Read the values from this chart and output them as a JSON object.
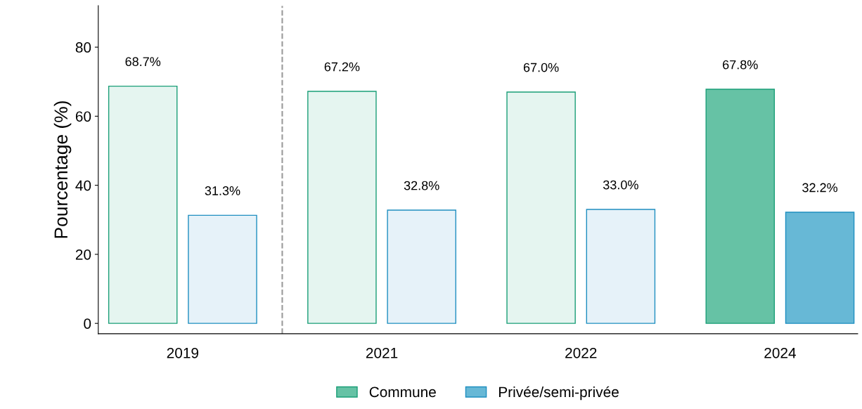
{
  "chart_data": {
    "type": "bar",
    "ylabel": "Pourcentage (%)",
    "categories": [
      "2019",
      "2021",
      "2022",
      "2024"
    ],
    "series": [
      {
        "name": "Commune",
        "color": "#1a9e77",
        "colors": [
          "#e5f5f0",
          "#e5f5f0",
          "#e5f5f0",
          "#66c2a5"
        ],
        "values": [
          68.7,
          67.2,
          67.0,
          67.8
        ],
        "value_labels": [
          "68.7%",
          "67.2%",
          "67.0%",
          "67.8%"
        ]
      },
      {
        "name": "Privée/semi-privée",
        "color": "#1f8fc0",
        "colors": [
          "#e6f2f9",
          "#e6f2f9",
          "#e6f2f9",
          "#67b8d6"
        ],
        "values": [
          31.3,
          32.8,
          33.0,
          32.2
        ],
        "value_labels": [
          "31.3%",
          "32.8%",
          "33.0%",
          "32.2%"
        ]
      }
    ],
    "ylim": [
      -3,
      92
    ],
    "yticks": [
      0,
      20,
      40,
      60,
      80
    ],
    "grid": false,
    "legend": "bottom"
  }
}
